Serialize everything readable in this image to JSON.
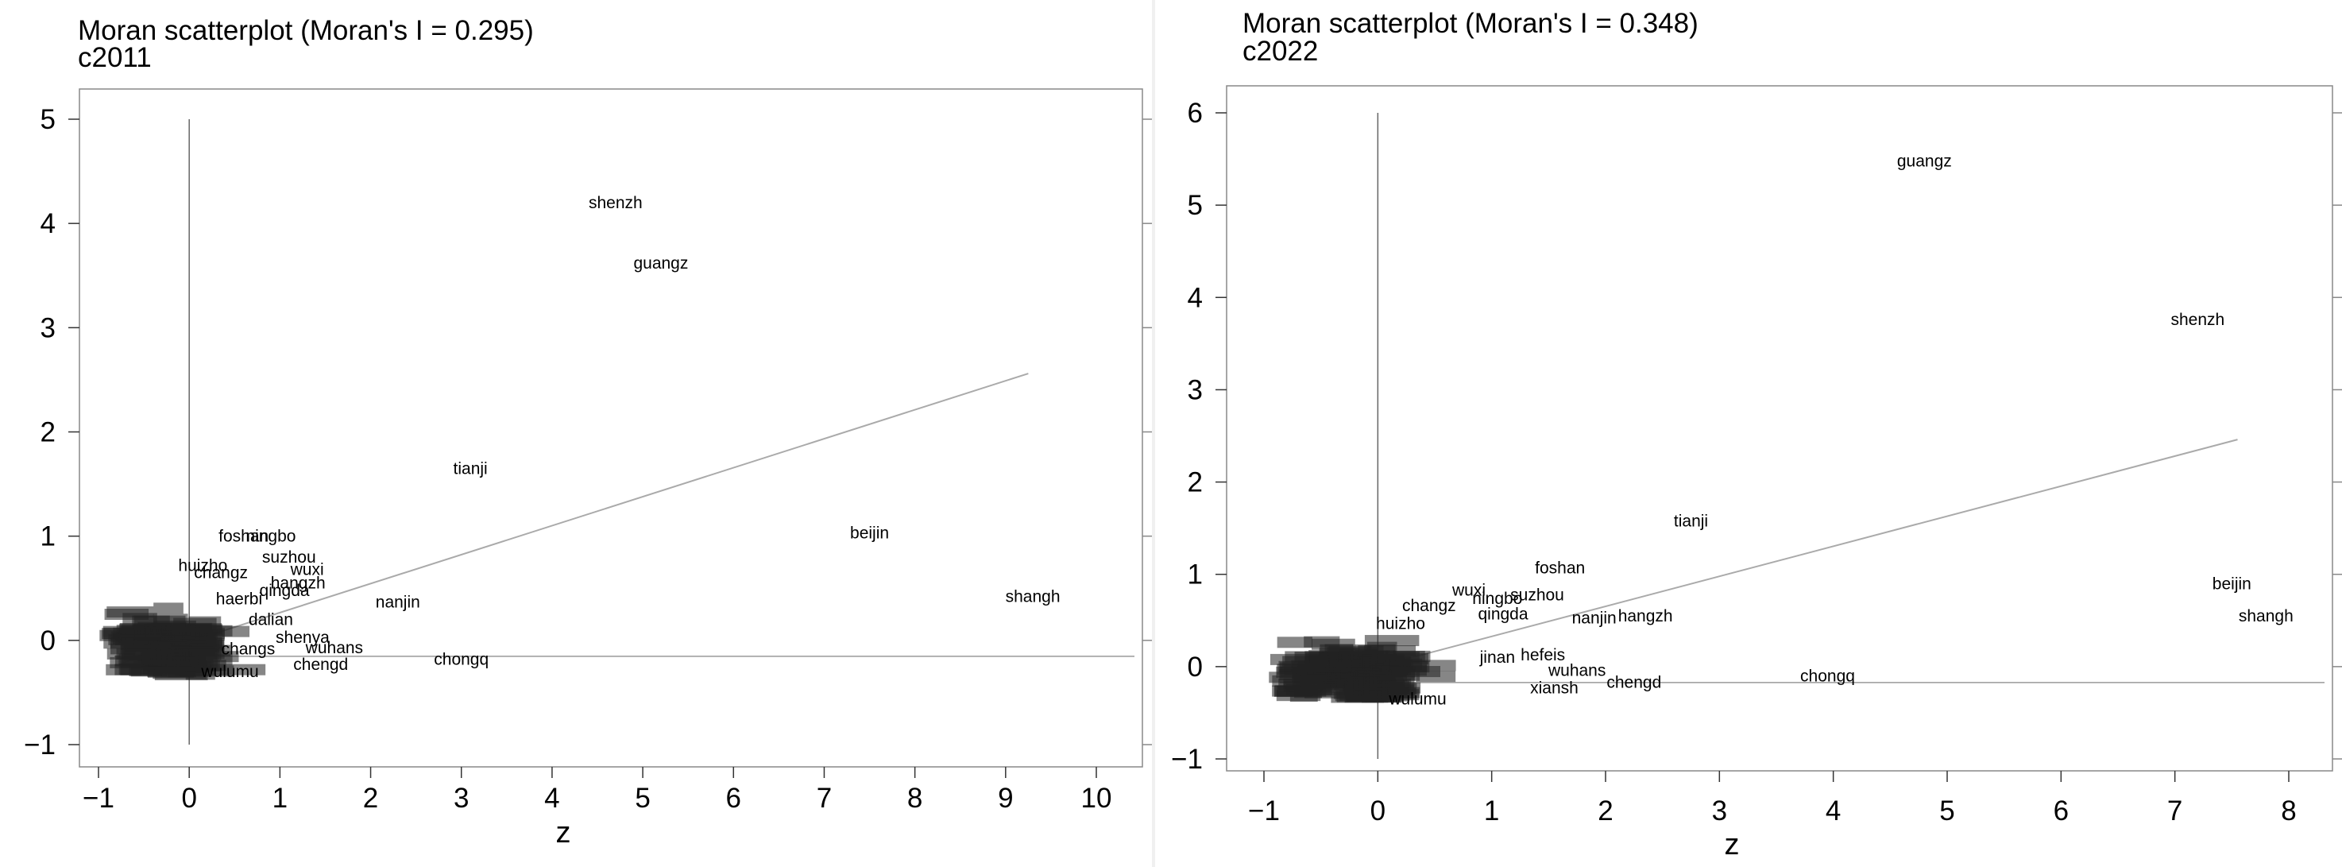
{
  "chart_data": [
    {
      "type": "scatter",
      "title": "Moran scatterplot (Moran's I = 0.295)",
      "subtitle": "c2011",
      "xlabel": "z",
      "ylabel": "",
      "xlim": [
        -1,
        10
      ],
      "ylim": [
        -1,
        5
      ],
      "x_ticks": [
        -1,
        0,
        1,
        2,
        3,
        4,
        5,
        6,
        7,
        8,
        9,
        10
      ],
      "y_ticks": [
        -1,
        0,
        1,
        2,
        3,
        4,
        5
      ],
      "grid": false,
      "slope": 0.295,
      "fit_line": {
        "x": [
          -0.75,
          9.25
        ],
        "y": [
          -0.22,
          2.56
        ]
      },
      "points": [
        {
          "label": "shenzh",
          "x": 4.7,
          "y": 4.2
        },
        {
          "label": "guangz",
          "x": 5.2,
          "y": 3.62
        },
        {
          "label": "tianji",
          "x": 3.1,
          "y": 1.65
        },
        {
          "label": "beijin",
          "x": 7.5,
          "y": 1.03
        },
        {
          "label": "shangh",
          "x": 9.3,
          "y": 0.42
        },
        {
          "label": "nanjin",
          "x": 2.3,
          "y": 0.37
        },
        {
          "label": "chongq",
          "x": 3.0,
          "y": -0.18
        },
        {
          "label": "foshan",
          "x": 0.6,
          "y": 1.0
        },
        {
          "label": "ningbo",
          "x": 0.9,
          "y": 1.0
        },
        {
          "label": "suzhou",
          "x": 1.1,
          "y": 0.8
        },
        {
          "label": "wuxi",
          "x": 1.3,
          "y": 0.68
        },
        {
          "label": "huizho",
          "x": 0.15,
          "y": 0.72
        },
        {
          "label": "changz",
          "x": 0.35,
          "y": 0.65
        },
        {
          "label": "hangzh",
          "x": 1.2,
          "y": 0.55
        },
        {
          "label": "qingda",
          "x": 1.05,
          "y": 0.48
        },
        {
          "label": "haerbi",
          "x": 0.55,
          "y": 0.4
        },
        {
          "label": "dalian",
          "x": 0.9,
          "y": 0.2
        },
        {
          "label": "shenya",
          "x": 1.25,
          "y": 0.03
        },
        {
          "label": "wuhans",
          "x": 1.6,
          "y": -0.07
        },
        {
          "label": "chengd",
          "x": 1.45,
          "y": -0.23
        },
        {
          "label": "changs",
          "x": 0.65,
          "y": -0.08
        },
        {
          "label": "wulumu",
          "x": 0.45,
          "y": -0.3
        }
      ]
    },
    {
      "type": "scatter",
      "title": "Moran scatterplot (Moran's I = 0.348)",
      "subtitle": "c2022",
      "xlabel": "z",
      "ylabel": "",
      "xlim": [
        -1,
        8
      ],
      "ylim": [
        -1,
        6
      ],
      "x_ticks": [
        -1,
        0,
        1,
        2,
        3,
        4,
        5,
        6,
        7,
        8
      ],
      "y_ticks": [
        -1,
        0,
        1,
        2,
        3,
        4,
        5,
        6
      ],
      "grid": false,
      "slope": 0.348,
      "fit_line": {
        "x": [
          -0.65,
          7.55
        ],
        "y": [
          -0.21,
          2.46
        ]
      },
      "points": [
        {
          "label": "guangz",
          "x": 4.8,
          "y": 5.48
        },
        {
          "label": "shenzh",
          "x": 7.2,
          "y": 3.76
        },
        {
          "label": "tianji",
          "x": 2.75,
          "y": 1.58
        },
        {
          "label": "beijin",
          "x": 7.5,
          "y": 0.9
        },
        {
          "label": "shangh",
          "x": 7.8,
          "y": 0.55
        },
        {
          "label": "foshan",
          "x": 1.6,
          "y": 1.07
        },
        {
          "label": "wuxi",
          "x": 0.8,
          "y": 0.83
        },
        {
          "label": "suzhou",
          "x": 1.4,
          "y": 0.78
        },
        {
          "label": "ningbo",
          "x": 1.05,
          "y": 0.74
        },
        {
          "label": "changz",
          "x": 0.45,
          "y": 0.66
        },
        {
          "label": "qingda",
          "x": 1.1,
          "y": 0.57
        },
        {
          "label": "nanjin",
          "x": 1.9,
          "y": 0.53
        },
        {
          "label": "hangzh",
          "x": 2.35,
          "y": 0.55
        },
        {
          "label": "huizho",
          "x": 0.2,
          "y": 0.47
        },
        {
          "label": "jinan",
          "x": 1.05,
          "y": 0.1
        },
        {
          "label": "hefeis",
          "x": 1.45,
          "y": 0.13
        },
        {
          "label": "wuhans",
          "x": 1.75,
          "y": -0.04
        },
        {
          "label": "chengd",
          "x": 2.25,
          "y": -0.17
        },
        {
          "label": "xiansh",
          "x": 1.55,
          "y": -0.23
        },
        {
          "label": "chongq",
          "x": 3.95,
          "y": -0.1
        },
        {
          "label": "wulumu",
          "x": 0.35,
          "y": -0.35
        }
      ]
    }
  ]
}
